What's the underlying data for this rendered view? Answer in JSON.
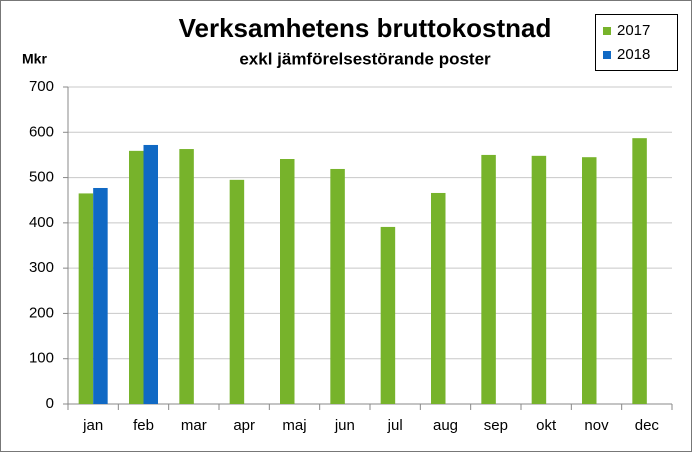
{
  "chart_data": {
    "type": "bar",
    "title": "Verksamhetens  bruttokostnad",
    "subtitle": "exkl jämförelsestörande poster",
    "y_label": "Mkr",
    "categories": [
      "jan",
      "feb",
      "mar",
      "apr",
      "maj",
      "jun",
      "jul",
      "aug",
      "sep",
      "okt",
      "nov",
      "dec"
    ],
    "series": [
      {
        "name": "2017",
        "color": "#77b32b",
        "values": [
          465,
          559,
          563,
          495,
          541,
          519,
          391,
          466,
          550,
          548,
          545,
          587
        ]
      },
      {
        "name": "2018",
        "color": "#1069c4",
        "values": [
          477,
          572,
          null,
          null,
          null,
          null,
          null,
          null,
          null,
          null,
          null,
          null
        ]
      }
    ],
    "ylim": [
      0,
      700
    ],
    "yticks": [
      0,
      100,
      200,
      300,
      400,
      500,
      600,
      700
    ],
    "grid": true,
    "legend": "top-right"
  }
}
